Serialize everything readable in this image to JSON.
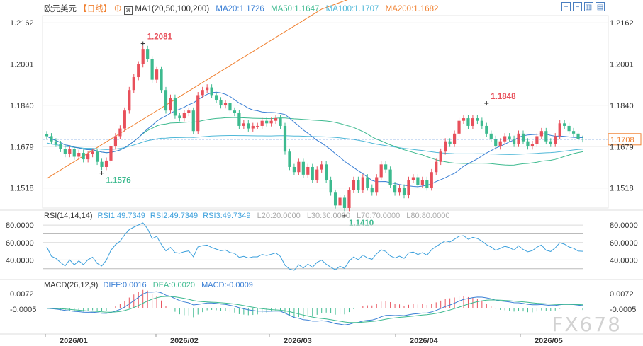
{
  "header": {
    "symbol": "欧元美元",
    "period": "【日线】",
    "period_icon": "plus-circle-icon",
    "ma_label": "MA1(20,50,100,200)",
    "ma20": "MA20:1.1726",
    "ma50": "MA50:1.1647",
    "ma100": "MA100:1.1707",
    "ma200": "MA200:1.1682"
  },
  "toolbar_icons": [
    "zoom-in-icon",
    "zoom-out-icon",
    "bar-chart-icon",
    "settings-icon",
    "fullscreen-icon"
  ],
  "rsi_header": {
    "label": "RSI(14,14,14)",
    "rsi1": "RSI1:49.7349",
    "rsi2": "RSI2:49.7349",
    "rsi3": "RSI3:49.7349",
    "l20": "L20:20.0000",
    "l30": "L30:30.0000",
    "l70": "L70:70.0000",
    "l80": "L80:80.0000"
  },
  "macd_header": {
    "label": "MACD(26,12,9)",
    "diff": "DIFF:0.0016",
    "dea": "DEA:0.0020",
    "macd": "MACD:-0.0009"
  },
  "annotations": {
    "high1": "1.2081",
    "low1": "1.1576",
    "low2": "1.1410",
    "high2": "1.1848",
    "current": "1.1708"
  },
  "y_ticks": [
    "1.2162",
    "1.2001",
    "1.1840",
    "1.1679",
    "1.1518"
  ],
  "rsi_ticks": [
    "80.0000",
    "60.0000",
    "40.0000"
  ],
  "macd_ticks": [
    "0.0072",
    "-0.0005"
  ],
  "x_ticks": [
    "2026/01",
    "2026/02",
    "2026/03",
    "2026/04",
    "2026/05"
  ],
  "watermark": "FX678",
  "colors": {
    "up": "#e8505b",
    "down": "#3dba8f",
    "ma20": "#3a7fd5",
    "ma50": "#3dba8f",
    "ma100": "#4fb8d8",
    "ma200": "#f08030",
    "rsi": "#3a9fdc",
    "price_line": "#3a7fd5"
  },
  "chart_data": {
    "type": "candlestick",
    "period": "daily",
    "ylim": [
      1.144,
      1.219
    ],
    "yticks": [
      1.2162,
      1.2001,
      1.184,
      1.1679,
      1.1518
    ],
    "last_price": 1.1708,
    "x_ticks": [
      "2026/01",
      "2026/02",
      "2026/03",
      "2026/04",
      "2026/05"
    ],
    "closes": [
      1.172,
      1.17,
      1.169,
      1.167,
      1.165,
      1.167,
      1.164,
      1.1655,
      1.163,
      1.165,
      1.166,
      1.162,
      1.16,
      1.1625,
      1.168,
      1.172,
      1.175,
      1.182,
      1.19,
      1.195,
      1.2,
      1.206,
      1.202,
      1.194,
      1.198,
      1.19,
      1.182,
      1.187,
      1.18,
      1.179,
      1.181,
      1.182,
      1.174,
      1.188,
      1.19,
      1.191,
      1.188,
      1.186,
      1.184,
      1.185,
      1.182,
      1.181,
      1.176,
      1.177,
      1.175,
      1.176,
      1.176,
      1.178,
      1.177,
      1.178,
      1.179,
      1.176,
      1.166,
      1.16,
      1.158,
      1.162,
      1.157,
      1.16,
      1.155,
      1.159,
      1.161,
      1.155,
      1.15,
      1.145,
      1.148,
      1.144,
      1.151,
      1.155,
      1.151,
      1.156,
      1.152,
      1.15,
      1.156,
      1.161,
      1.159,
      1.153,
      1.15,
      1.152,
      1.149,
      1.155,
      1.156,
      1.153,
      1.155,
      1.152,
      1.158,
      1.162,
      1.166,
      1.17,
      1.169,
      1.173,
      1.178,
      1.179,
      1.176,
      1.179,
      1.178,
      1.176,
      1.173,
      1.171,
      1.168,
      1.17,
      1.172,
      1.171,
      1.169,
      1.173,
      1.17,
      1.168,
      1.169,
      1.172,
      1.174,
      1.17,
      1.169,
      1.172,
      1.177,
      1.176,
      1.174,
      1.173,
      1.171,
      1.1708
    ],
    "annotations": [
      {
        "text": "1.2081",
        "type": "high"
      },
      {
        "text": "1.1576",
        "type": "low"
      },
      {
        "text": "1.1410",
        "type": "low"
      },
      {
        "text": "1.1848",
        "type": "high"
      }
    ],
    "series": [
      {
        "name": "MA20",
        "last": 1.1726
      },
      {
        "name": "MA50",
        "last": 1.1647
      },
      {
        "name": "MA100",
        "last": 1.1707
      },
      {
        "name": "MA200",
        "last": 1.1682
      }
    ],
    "rsi": {
      "ylim": [
        20,
        85
      ],
      "yticks": [
        80,
        60,
        40
      ],
      "levels": [
        70,
        30
      ],
      "last": 49.7349
    },
    "macd": {
      "ylim": [
        -0.012,
        0.009
      ],
      "yticks": [
        0.0072,
        -0.0005
      ],
      "diff": 0.0016,
      "dea": 0.002,
      "macd": -0.0009
    }
  }
}
